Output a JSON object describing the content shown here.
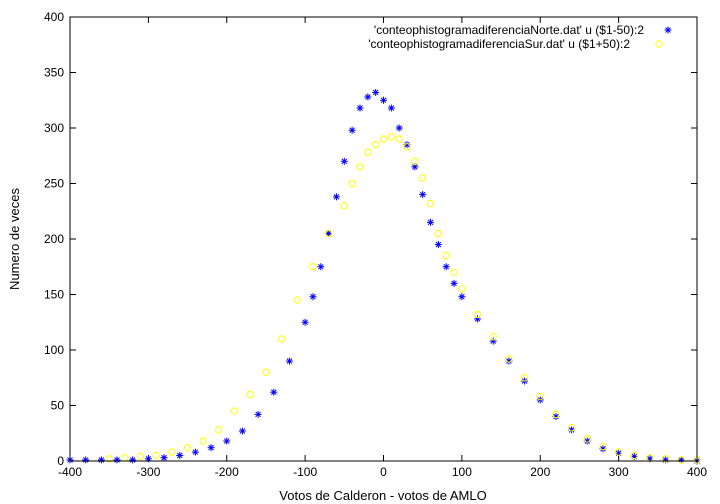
{
  "chart_data": {
    "type": "scatter",
    "xlabel": "Votos de Calderon - votos de AMLO",
    "ylabel": "Numero de veces",
    "xlim": [
      -400,
      400
    ],
    "ylim": [
      0,
      400
    ],
    "x_ticks": [
      -400,
      -300,
      -200,
      -100,
      0,
      100,
      200,
      300,
      400
    ],
    "y_ticks": [
      0,
      50,
      100,
      150,
      200,
      250,
      300,
      350,
      400
    ],
    "x_tick_labels": [
      "-400",
      "-300",
      "-200",
      "-100",
      "0",
      "100",
      "200",
      "300",
      "400"
    ],
    "y_tick_labels": [
      "0",
      "50",
      "100",
      "150",
      "200",
      "250",
      "300",
      "350",
      "400"
    ],
    "grid": false,
    "legend_position": "top-right",
    "series": [
      {
        "name": "'conteophistogramadiferenciaNorte.dat' u ($1-50):2",
        "marker": "asterisk",
        "color": "#0000ff",
        "x": [
          -400,
          -380,
          -360,
          -340,
          -320,
          -300,
          -280,
          -260,
          -240,
          -220,
          -200,
          -180,
          -160,
          -140,
          -120,
          -100,
          -90,
          -80,
          -70,
          -60,
          -50,
          -40,
          -30,
          -20,
          -10,
          0,
          10,
          20,
          30,
          40,
          50,
          60,
          70,
          80,
          90,
          100,
          120,
          140,
          160,
          180,
          200,
          220,
          240,
          260,
          280,
          300,
          320,
          340,
          360,
          380,
          400
        ],
        "y": [
          1,
          1,
          1,
          1,
          1,
          2,
          3,
          5,
          8,
          12,
          18,
          27,
          42,
          62,
          90,
          125,
          148,
          175,
          205,
          238,
          270,
          298,
          318,
          328,
          332,
          325,
          318,
          300,
          285,
          265,
          240,
          215,
          195,
          175,
          160,
          148,
          128,
          108,
          90,
          72,
          55,
          40,
          28,
          18,
          11,
          7,
          4,
          2,
          1,
          1,
          0
        ]
      },
      {
        "name": "'conteophistogramadiferenciaSur.dat' u ($1+50):2",
        "marker": "circle",
        "color": "#ffff00",
        "x": [
          -350,
          -330,
          -310,
          -290,
          -270,
          -250,
          -230,
          -210,
          -190,
          -170,
          -150,
          -130,
          -110,
          -90,
          -70,
          -50,
          -40,
          -30,
          -20,
          -10,
          0,
          10,
          20,
          30,
          40,
          50,
          60,
          70,
          80,
          90,
          100,
          120,
          140,
          160,
          180,
          200,
          220,
          240,
          260,
          280,
          300,
          320,
          340,
          360,
          380,
          400
        ],
        "y": [
          2,
          3,
          4,
          5,
          8,
          12,
          18,
          28,
          45,
          60,
          80,
          110,
          145,
          175,
          205,
          230,
          250,
          265,
          278,
          285,
          290,
          292,
          290,
          283,
          270,
          255,
          232,
          205,
          185,
          170,
          155,
          132,
          112,
          92,
          75,
          58,
          42,
          30,
          20,
          13,
          8,
          5,
          3,
          2,
          1,
          1
        ]
      }
    ]
  }
}
